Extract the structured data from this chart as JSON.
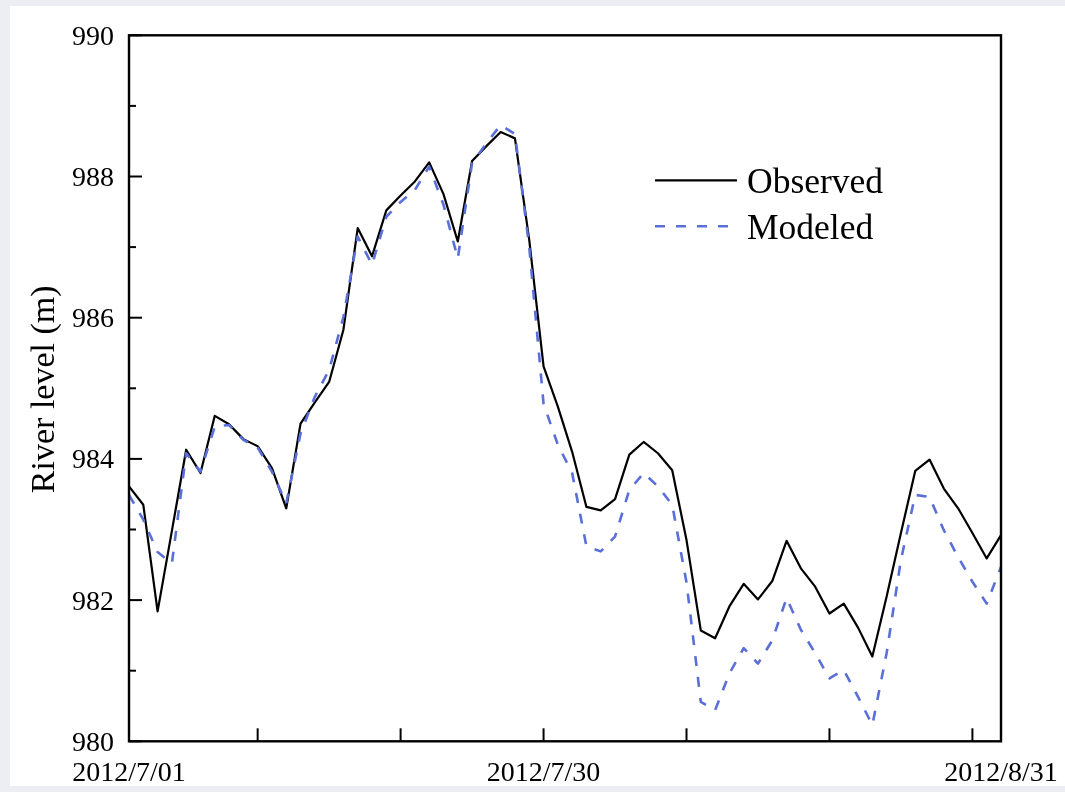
{
  "chart_data": {
    "type": "line",
    "ylabel": "River level (m)",
    "x": [
      "2012-07-01",
      "2012-07-02",
      "2012-07-03",
      "2012-07-04",
      "2012-07-05",
      "2012-07-06",
      "2012-07-07",
      "2012-07-08",
      "2012-07-09",
      "2012-07-10",
      "2012-07-11",
      "2012-07-12",
      "2012-07-13",
      "2012-07-14",
      "2012-07-15",
      "2012-07-16",
      "2012-07-17",
      "2012-07-18",
      "2012-07-19",
      "2012-07-20",
      "2012-07-21",
      "2012-07-22",
      "2012-07-23",
      "2012-07-24",
      "2012-07-25",
      "2012-07-26",
      "2012-07-27",
      "2012-07-28",
      "2012-07-29",
      "2012-07-30",
      "2012-07-31",
      "2012-08-01",
      "2012-08-02",
      "2012-08-03",
      "2012-08-04",
      "2012-08-05",
      "2012-08-06",
      "2012-08-07",
      "2012-08-08",
      "2012-08-09",
      "2012-08-10",
      "2012-08-11",
      "2012-08-12",
      "2012-08-13",
      "2012-08-14",
      "2012-08-15",
      "2012-08-16",
      "2012-08-17",
      "2012-08-18",
      "2012-08-19",
      "2012-08-20",
      "2012-08-21",
      "2012-08-22",
      "2012-08-23",
      "2012-08-24",
      "2012-08-25",
      "2012-08-26",
      "2012-08-27",
      "2012-08-28",
      "2012-08-29",
      "2012-08-30",
      "2012-08-31"
    ],
    "series": [
      {
        "name": "Observed",
        "color": "#000000",
        "line_style": "solid",
        "values": [
          983.61,
          983.35,
          981.84,
          982.98,
          984.13,
          983.8,
          984.61,
          984.49,
          984.28,
          984.18,
          983.87,
          983.3,
          984.5,
          984.8,
          985.09,
          985.83,
          987.27,
          986.87,
          987.52,
          987.73,
          987.93,
          988.2,
          987.75,
          987.08,
          988.22,
          988.43,
          988.63,
          988.54,
          987.1,
          985.31,
          984.74,
          984.1,
          983.32,
          983.27,
          983.43,
          984.06,
          984.24,
          984.08,
          983.84,
          982.85,
          981.57,
          981.46,
          981.91,
          982.23,
          982.01,
          982.27,
          982.84,
          982.45,
          982.19,
          981.81,
          981.95,
          981.61,
          981.2,
          982.05,
          982.95,
          983.83,
          983.99,
          983.58,
          983.3,
          982.95,
          982.59,
          982.92
        ]
      },
      {
        "name": "Modeled",
        "color": "#5a6fd8",
        "line_style": "dashed",
        "values": [
          983.49,
          983.14,
          982.68,
          982.52,
          984.08,
          983.82,
          984.46,
          984.48,
          984.27,
          984.16,
          983.82,
          983.37,
          984.36,
          984.88,
          985.26,
          986.01,
          987.15,
          986.75,
          987.43,
          987.64,
          987.81,
          988.14,
          987.6,
          986.84,
          988.19,
          988.47,
          988.73,
          988.6,
          987.0,
          984.78,
          984.2,
          983.8,
          982.76,
          982.69,
          982.9,
          983.56,
          983.8,
          983.61,
          983.35,
          982.25,
          980.56,
          980.44,
          980.96,
          981.32,
          981.1,
          981.43,
          982.03,
          981.58,
          981.25,
          980.89,
          981.01,
          980.63,
          980.23,
          981.25,
          982.57,
          983.49,
          983.46,
          982.99,
          982.61,
          982.26,
          981.95,
          982.47
        ]
      }
    ],
    "xlim": [
      "2012-07-01",
      "2012-08-31"
    ],
    "xticks": [
      {
        "value": "2012-07-01",
        "label": "2012/7/01"
      },
      {
        "value": "2012-07-10",
        "label": null
      },
      {
        "value": "2012-07-20",
        "label": null
      },
      {
        "value": "2012-07-30",
        "label": "2012/7/30"
      },
      {
        "value": "2012-08-09",
        "label": null
      },
      {
        "value": "2012-08-19",
        "label": null
      },
      {
        "value": "2012-08-29",
        "label": null
      },
      {
        "value": "2012-08-31",
        "label": "2012/8/31"
      }
    ],
    "ylim": [
      980,
      990
    ],
    "yticks": [
      980,
      {
        "value": 981,
        "label": null
      },
      982,
      {
        "value": 983,
        "label": null
      },
      984,
      {
        "value": 985,
        "label": null
      },
      986,
      {
        "value": 987,
        "label": null
      },
      988,
      {
        "value": 989,
        "label": null
      },
      990
    ],
    "grid": false,
    "legend": "top right"
  }
}
